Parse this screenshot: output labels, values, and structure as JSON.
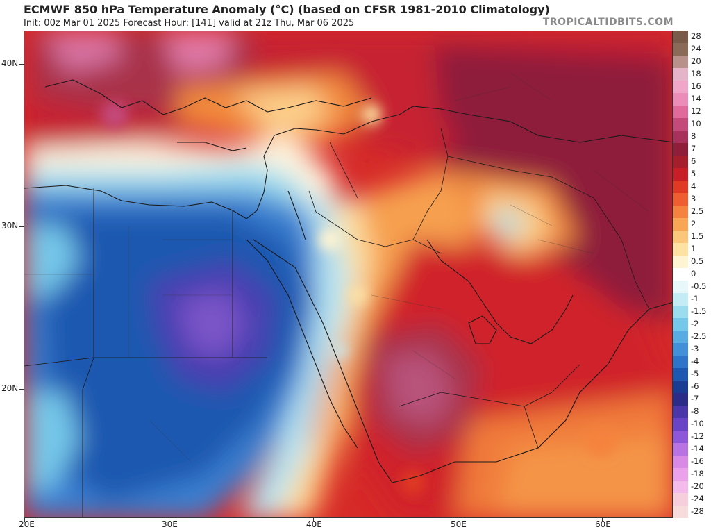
{
  "header": {
    "title": "ECMWF 850 hPa Temperature Anomaly (°C) (based on CFSR 1981-2010 Climatology)",
    "subtitle": "Init: 00z Mar 01 2025   Forecast Hour: [141]   valid at 21z Thu, Mar 06 2025",
    "brand": "TROPICALTIDBITS.COM"
  },
  "axes": {
    "lat_labels": [
      "40N",
      "30N",
      "20N"
    ],
    "lon_labels": [
      "20E",
      "30E",
      "40E",
      "50E",
      "60E"
    ]
  },
  "colorbar": {
    "levels": [
      {
        "label": "28",
        "color": "#7a5a48"
      },
      {
        "label": "24",
        "color": "#8c6a58"
      },
      {
        "label": "20",
        "color": "#b8928a"
      },
      {
        "label": "18",
        "color": "#e6b4c8"
      },
      {
        "label": "16",
        "color": "#f0a6c8"
      },
      {
        "label": "14",
        "color": "#ec8cb8"
      },
      {
        "label": "12",
        "color": "#e06a9c"
      },
      {
        "label": "10",
        "color": "#c44a7c"
      },
      {
        "label": "8",
        "color": "#a8325c"
      },
      {
        "label": "7",
        "color": "#8e1e3a"
      },
      {
        "label": "6",
        "color": "#a61e2c"
      },
      {
        "label": "5",
        "color": "#c81e28"
      },
      {
        "label": "4",
        "color": "#e03a24"
      },
      {
        "label": "3",
        "color": "#ee5e30"
      },
      {
        "label": "2.5",
        "color": "#f5823e"
      },
      {
        "label": "2",
        "color": "#f8a656"
      },
      {
        "label": "1.5",
        "color": "#fbc67a"
      },
      {
        "label": "1",
        "color": "#fde2a4"
      },
      {
        "label": "0.5",
        "color": "#fff4d2"
      },
      {
        "label": "0",
        "color": "#ffffff"
      },
      {
        "label": "-0.5",
        "color": "#e8f8fa"
      },
      {
        "label": "-1",
        "color": "#c4ecf4"
      },
      {
        "label": "-1.5",
        "color": "#9cdcef"
      },
      {
        "label": "-2",
        "color": "#76c8ea"
      },
      {
        "label": "-2.5",
        "color": "#58ace2"
      },
      {
        "label": "-3",
        "color": "#4290d8"
      },
      {
        "label": "-4",
        "color": "#2e74c8"
      },
      {
        "label": "-5",
        "color": "#1e58b0"
      },
      {
        "label": "-6",
        "color": "#1a3c92"
      },
      {
        "label": "-7",
        "color": "#2c2c88"
      },
      {
        "label": "-8",
        "color": "#4a36a8"
      },
      {
        "label": "-10",
        "color": "#6a44c6"
      },
      {
        "label": "-12",
        "color": "#8e56d8"
      },
      {
        "label": "-14",
        "color": "#b872e2"
      },
      {
        "label": "-16",
        "color": "#d88ae6"
      },
      {
        "label": "-18",
        "color": "#eca2ea"
      },
      {
        "label": "-20",
        "color": "#f4baec"
      },
      {
        "label": "-24",
        "color": "#f6cedc"
      },
      {
        "label": "-28",
        "color": "#f8dcdc"
      }
    ]
  },
  "palette": {
    "hot_dark": "#8e1e3a",
    "hot_red": "#d0242a",
    "hot_orange": "#f07a3a",
    "warm_pale": "#fcd9a0",
    "neutral": "#fff8ec",
    "cool_light": "#8cd6ee",
    "cool_blue": "#3a7fd0",
    "cold_dark": "#1e4ea8",
    "cold_purple": "#6a52c8",
    "border_line": "#1a1a1a"
  }
}
